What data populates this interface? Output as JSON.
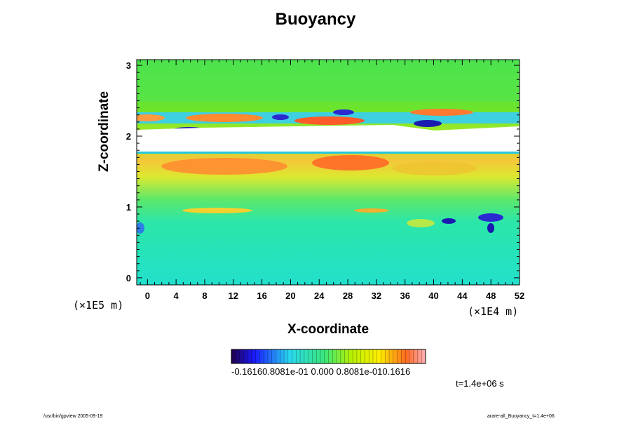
{
  "chart_data": {
    "type": "heatmap",
    "title": "Buoyancy",
    "xlabel": "X-coordinate",
    "ylabel": "Z-coordinate",
    "x_unit": "(×1E4 m)",
    "y_unit": "(×1E5 m)",
    "xlim": [
      -1.5,
      52
    ],
    "ylim": [
      -0.1,
      3.08
    ],
    "x_ticks": [
      "0",
      "4",
      "8",
      "12",
      "16",
      "20",
      "24",
      "28",
      "32",
      "36",
      "40",
      "44",
      "48",
      "52"
    ],
    "y_ticks": [
      "0",
      "1",
      "2",
      "3"
    ],
    "colorbar": {
      "range": [
        -0.1616,
        0.1616
      ],
      "tick_text": "-0.16160.8081e-01 0.000 0.8081e-010.1616"
    },
    "annotation": "t=1.4e+06 s",
    "footer_left": "/usr/bin/gpview 2005-09-19",
    "footer_right": "arare-all_Buoyancy_t=1.4e+06"
  }
}
